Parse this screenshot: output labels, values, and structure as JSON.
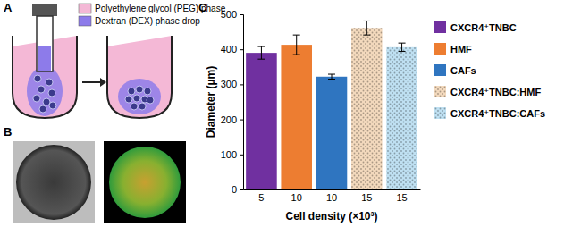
{
  "panel_labels": [
    "A",
    "B",
    "C"
  ],
  "diagram": {
    "labels": [
      "Polyethylene glycol (PEG) phase",
      "Dextran (DEX) phase drop"
    ]
  },
  "chart_data": {
    "type": "bar",
    "y_label": "Diameter (µm)",
    "x_label": "Cell density (×10³)",
    "categories": [
      "5",
      "10",
      "10",
      "15",
      "15"
    ],
    "ylim": [
      0,
      500
    ],
    "yticks": [
      0,
      100,
      200,
      300,
      400,
      500
    ],
    "grid": false,
    "legend": "right",
    "series": [
      {
        "name": "CXCR4⁺TNBC",
        "color": "#7030a0",
        "values": [
          390,
          null,
          null,
          null,
          null
        ],
        "errors": [
          18,
          null,
          null,
          null,
          null
        ]
      },
      {
        "name": "HMF",
        "color": "#ed7d31",
        "values": [
          null,
          413,
          null,
          null,
          null
        ],
        "errors": [
          null,
          28,
          null,
          null,
          null
        ]
      },
      {
        "name": "CAFs",
        "color": "#2f75c0",
        "values": [
          null,
          null,
          322,
          null,
          null
        ],
        "errors": [
          null,
          null,
          7,
          null,
          null
        ]
      },
      {
        "name": "CXCR4⁺TNBC:HMF",
        "color": "#f3d9bd",
        "marker": "dots",
        "values": [
          null,
          null,
          null,
          461,
          null
        ],
        "errors": [
          null,
          null,
          null,
          20,
          null
        ]
      },
      {
        "name": "CXCR4⁺TNBC:CAFs",
        "color": "#bfe0f2",
        "marker": "dots",
        "values": [
          null,
          null,
          null,
          null,
          406
        ],
        "errors": [
          null,
          null,
          null,
          null,
          12
        ]
      }
    ]
  }
}
